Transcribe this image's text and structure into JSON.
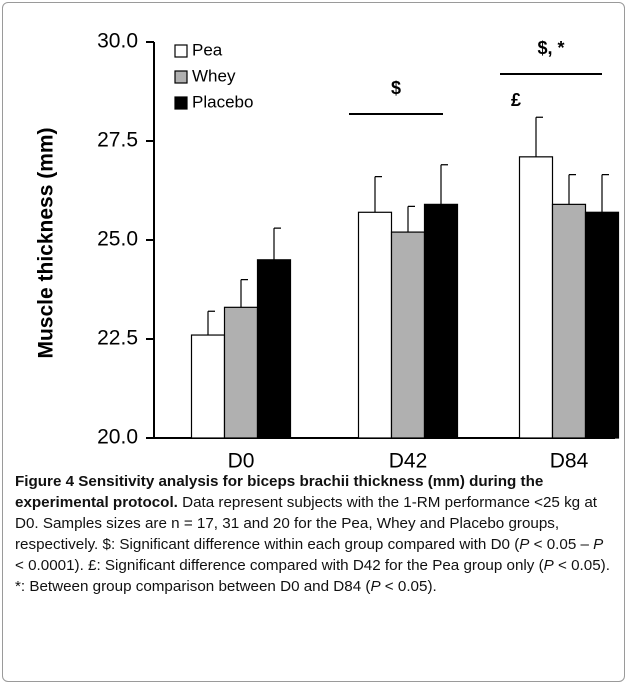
{
  "chart_data": {
    "type": "bar",
    "y_label": "Muscle thickness (mm)",
    "categories": [
      "D0",
      "D42",
      "D84"
    ],
    "series": [
      {
        "name": "Pea",
        "color": "#ffffff",
        "values": [
          22.6,
          25.7,
          27.1
        ],
        "errors": [
          0.6,
          0.9,
          1.0
        ]
      },
      {
        "name": "Whey",
        "color": "#b0b0b0",
        "values": [
          23.3,
          25.2,
          25.9
        ],
        "errors": [
          0.7,
          0.65,
          0.75
        ]
      },
      {
        "name": "Placebo",
        "color": "#000000",
        "values": [
          24.5,
          25.9,
          25.7
        ],
        "errors": [
          0.8,
          1.0,
          0.95
        ]
      }
    ],
    "ylim": [
      20,
      30
    ],
    "yticks": [
      {
        "value": 20,
        "label": "20.0"
      },
      22.5,
      {
        "value": 25,
        "label": "25.0"
      },
      27.5,
      {
        "value": 30,
        "label": "30.0"
      }
    ],
    "annotations": [
      "$",
      "$, *",
      "£"
    ]
  },
  "caption": {
    "title": "Figure 4 Sensitivity analysis for biceps brachii thickness (mm) during the experimental protocol.",
    "body": [
      " Data represent subjects with the 1-RM performance <25 kg at D0. Samples sizes are n = 17, 31 and 20 for the Pea, Whey and Placebo groups, respectively. $: Significant difference within each group compared with D0 (",
      "P",
      " < 0.05 – ",
      "P",
      " < 0.0001). £: Significant difference compared with D42 for the Pea group only (",
      "P",
      " < 0.05). *: Between group comparison between D0 and D84 (",
      "P",
      " < 0.05)."
    ]
  }
}
